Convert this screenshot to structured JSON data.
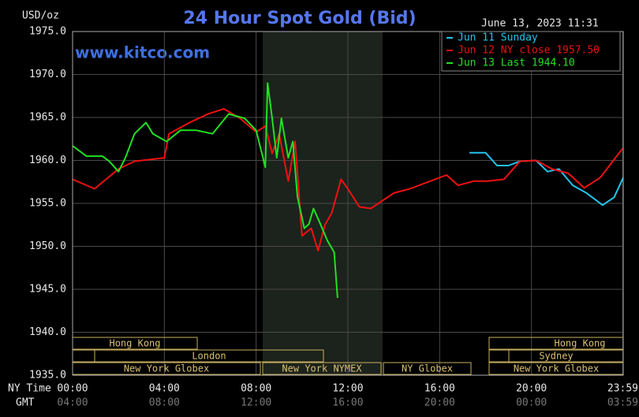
{
  "chart_data": {
    "type": "line",
    "title": "24 Hour Spot Gold (Bid)",
    "y_label": "USD/oz",
    "watermark": "www.kitco.com",
    "timestamp": "June 13, 2023 11:31",
    "x_label": "NY Time",
    "x2_label": "GMT",
    "xlim": [
      0,
      24
    ],
    "xticks": [
      {
        "value": 0,
        "label": "00:00"
      },
      {
        "value": 4,
        "label": "04:00"
      },
      {
        "value": 8,
        "label": "08:00"
      },
      {
        "value": 12,
        "label": "12:00"
      },
      {
        "value": 16,
        "label": "16:00"
      },
      {
        "value": 20,
        "label": "20:00"
      },
      {
        "value": 23.98,
        "label": "23:59"
      }
    ],
    "gmt_labels": [
      "04:00",
      "08:00",
      "12:00",
      "16:00",
      "20:00",
      "00:00",
      "03:59"
    ],
    "ylim": [
      1935,
      1975
    ],
    "yticks": [
      {
        "value": 1935,
        "label": "1935.0"
      },
      {
        "value": 1940,
        "label": "1940.0"
      },
      {
        "value": 1945,
        "label": "1945.0"
      },
      {
        "value": 1950,
        "label": "1950.0"
      },
      {
        "value": 1955,
        "label": "1955.0"
      },
      {
        "value": 1960,
        "label": "1960.0"
      },
      {
        "value": 1965,
        "label": "1965.0"
      },
      {
        "value": 1970,
        "label": "1970.0"
      },
      {
        "value": 1975,
        "label": "1975.0"
      }
    ],
    "grid": true,
    "sessions": [
      "Hong Kong",
      "London",
      "New York Globex",
      "New York NYMEX",
      "NY Globex",
      "Hong Kong",
      "Sydney",
      "New York Globex"
    ],
    "series": [
      {
        "name": "Jun 11 Sunday",
        "color": "#22c4f0",
        "x": [
          17.3,
          18.0,
          18.5,
          19.0,
          19.5,
          20.2,
          20.7,
          21.2,
          21.8,
          22.4,
          23.1,
          23.6,
          24.0
        ],
        "values": [
          1960.9,
          1960.9,
          1959.4,
          1959.4,
          1959.9,
          1960.0,
          1958.7,
          1959.0,
          1957.1,
          1956.2,
          1954.8,
          1955.7,
          1958.0
        ]
      },
      {
        "name": "Jun 12 NY close 1957.50",
        "color": "#ee1111",
        "x": [
          0,
          0.96,
          2.0,
          2.7,
          4.0,
          4.2,
          5.1,
          5.9,
          6.6,
          7.3,
          8.0,
          8.4,
          8.7,
          9.0,
          9.4,
          9.7,
          10.0,
          10.4,
          10.7,
          11.0,
          11.3,
          11.7,
          12.0,
          12.5,
          13.0,
          13.5,
          14.0,
          14.7,
          15.6,
          16.3,
          16.8,
          17.5,
          18.1,
          18.8,
          19.5,
          20.2,
          20.9,
          21.6,
          22.3,
          23.0,
          23.6,
          23.98
        ],
        "values": [
          1957.8,
          1956.7,
          1959.0,
          1959.9,
          1960.3,
          1963.1,
          1964.4,
          1965.4,
          1966.0,
          1964.9,
          1963.3,
          1964.0,
          1960.8,
          1963.1,
          1957.6,
          1962.2,
          1951.2,
          1952.1,
          1949.5,
          1952.5,
          1953.9,
          1957.8,
          1956.7,
          1954.6,
          1954.4,
          1955.3,
          1956.2,
          1956.7,
          1957.6,
          1958.3,
          1957.1,
          1957.6,
          1957.6,
          1957.8,
          1959.9,
          1960.0,
          1959.0,
          1958.5,
          1956.8,
          1958.0,
          1960.1,
          1961.4
        ]
      },
      {
        "name": "Jun 13 Last 1944.10",
        "color": "#22e022",
        "x": [
          0,
          0.6,
          1.3,
          1.6,
          2.0,
          2.3,
          2.7,
          3.2,
          3.5,
          4.1,
          4.7,
          5.4,
          6.1,
          6.8,
          7.5,
          8.0,
          8.4,
          8.5,
          8.7,
          8.9,
          9.1,
          9.4,
          9.6,
          9.8,
          10.1,
          10.3,
          10.5,
          10.8,
          11.1,
          11.4,
          11.55
        ],
        "values": [
          1961.7,
          1960.5,
          1960.5,
          1959.9,
          1958.7,
          1960.3,
          1963.1,
          1964.4,
          1963.1,
          1962.2,
          1963.5,
          1963.5,
          1963.1,
          1965.4,
          1964.9,
          1963.5,
          1959.2,
          1969.0,
          1964.9,
          1960.3,
          1964.9,
          1960.3,
          1962.2,
          1955.8,
          1952.1,
          1952.6,
          1954.4,
          1952.6,
          1950.7,
          1949.3,
          1944.0
        ]
      }
    ]
  }
}
